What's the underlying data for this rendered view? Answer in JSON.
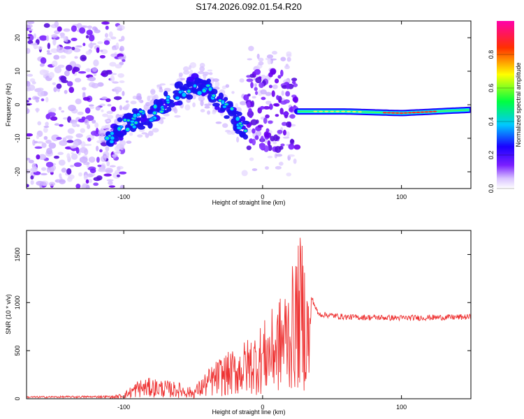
{
  "chart_data": [
    {
      "type": "heatmap",
      "title": "S174.2026.092.01.54.R20",
      "xlabel": "Height of straight line (km)",
      "ylabel": "Frequency (Hz)",
      "xlim": [
        -170,
        150
      ],
      "ylim": [
        -25,
        25
      ],
      "xticks": [
        -100,
        0,
        100
      ],
      "yticks": [
        -20,
        -10,
        0,
        10,
        20
      ],
      "colorbar": {
        "label": "Normalized spectral amplitude",
        "range": [
          0,
          1
        ],
        "ticks": [
          "0.0",
          "0.2",
          "0.4",
          "0.6",
          "0.8"
        ],
        "colors": [
          "#ffffff",
          "#d9c3ff",
          "#7a1fff",
          "#1a00ff",
          "#00c8ff",
          "#00ff40",
          "#ffff00",
          "#ff3000",
          "#ff00aa"
        ]
      },
      "features": {
        "noise_region_x": [
          -170,
          -110
        ],
        "chirp_track": [
          [
            -112,
            -10
          ],
          [
            -95,
            -5
          ],
          [
            -80,
            -3
          ],
          [
            -65,
            2
          ],
          [
            -48,
            6
          ],
          [
            -38,
            4
          ],
          [
            -28,
            0
          ],
          [
            -18,
            -5
          ],
          [
            -12,
            -8
          ]
        ],
        "scatter_region_x": [
          -12,
          25
        ],
        "tone_track": [
          [
            25,
            -2
          ],
          [
            60,
            -2
          ],
          [
            100,
            -2.5
          ],
          [
            150,
            -1.5
          ]
        ]
      }
    },
    {
      "type": "line",
      "xlabel": "Height of straight line (km)",
      "ylabel": "SNR (10 * v/v)",
      "xlim": [
        -170,
        150
      ],
      "ylim": [
        0,
        1750
      ],
      "xticks": [
        -100,
        0,
        100
      ],
      "yticks": [
        0,
        500,
        1000,
        1500
      ],
      "color": "#ee3333",
      "series": [
        {
          "name": "SNR",
          "envelope": [
            [
              -170,
              20
            ],
            [
              -110,
              25
            ],
            [
              -100,
              60
            ],
            [
              -90,
              200
            ],
            [
              -80,
              220
            ],
            [
              -60,
              170
            ],
            [
              -50,
              110
            ],
            [
              -40,
              300
            ],
            [
              -30,
              450
            ],
            [
              -20,
              520
            ],
            [
              -10,
              650
            ],
            [
              0,
              800
            ],
            [
              10,
              1000
            ],
            [
              20,
              1300
            ],
            [
              28,
              1750
            ],
            [
              34,
              1100
            ],
            [
              40,
              880
            ],
            [
              60,
              850
            ],
            [
              100,
              840
            ],
            [
              150,
              850
            ]
          ]
        }
      ]
    }
  ]
}
